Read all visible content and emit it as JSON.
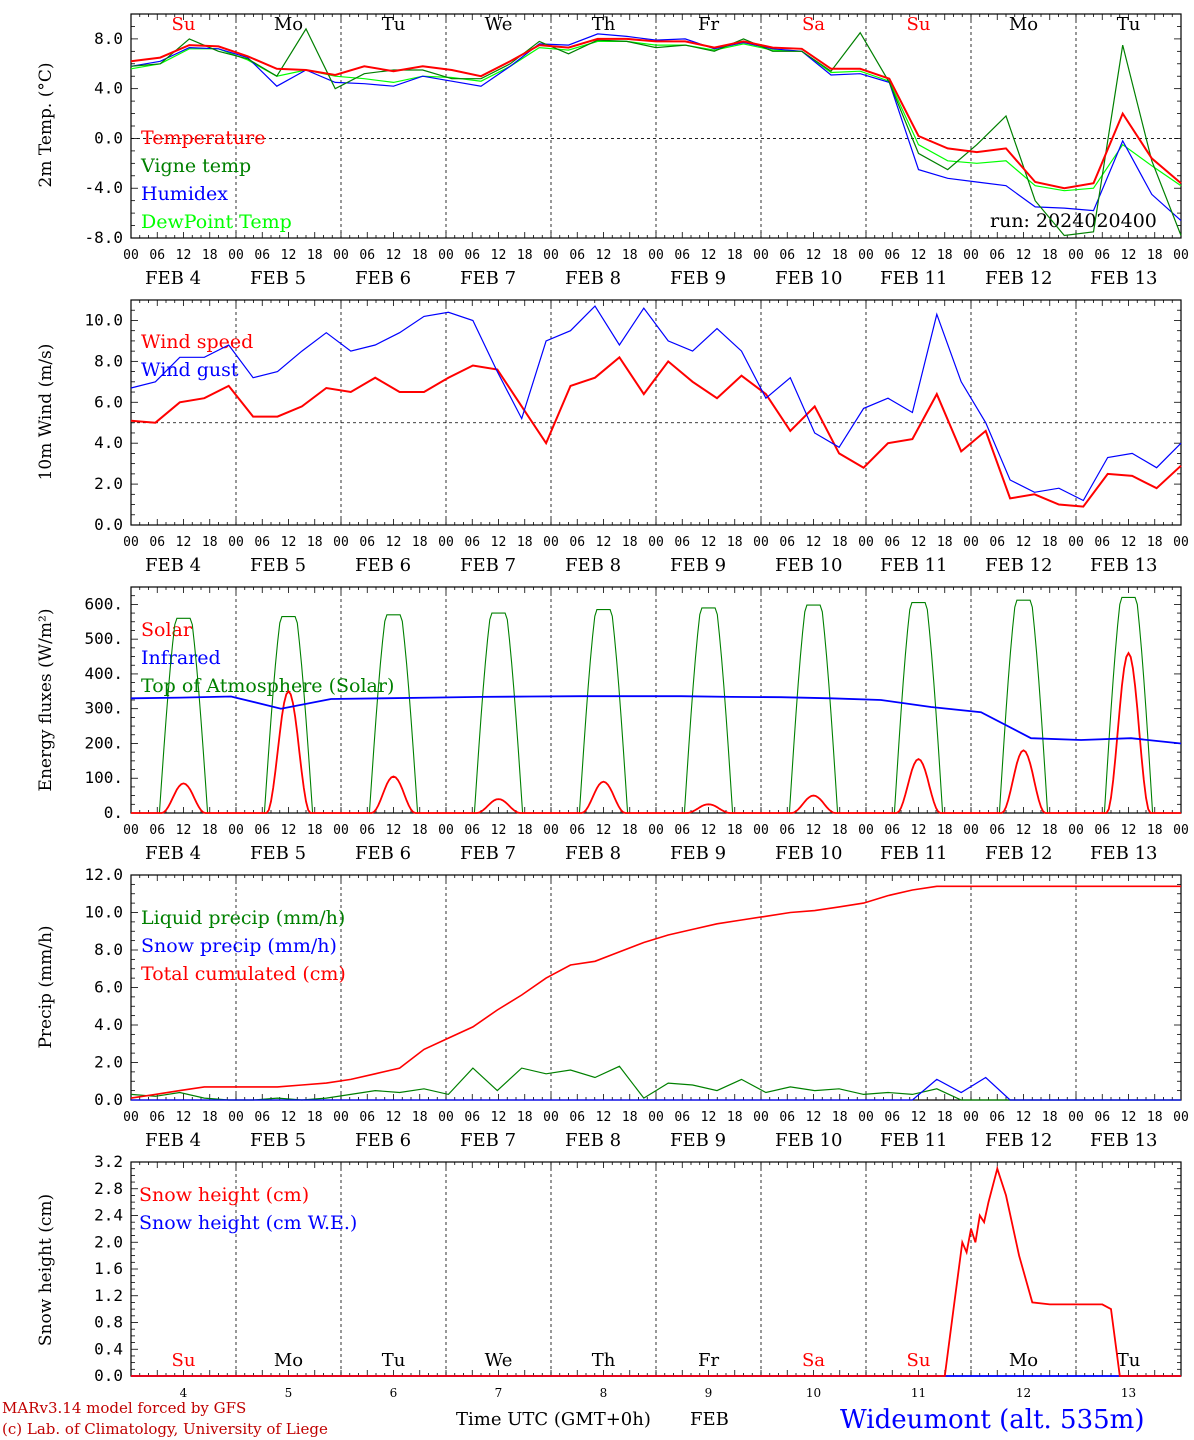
{
  "run_label": "run: 2024020400",
  "footer": {
    "model": "MARv3.14 model forced by GFS",
    "copyright": "(c) Lab. of Climatology, University of Liege",
    "xlabel": "Time UTC (GMT+0h)",
    "month": "FEB",
    "station": "Wideumont (alt. 535m)"
  },
  "day_names": [
    "Su",
    "Mo",
    "Tu",
    "We",
    "Th",
    "Fr",
    "Sa",
    "Su",
    "Mo",
    "Tu"
  ],
  "weekend_color": "#ff0000",
  "date_labels": [
    "FEB  4",
    "FEB  5",
    "FEB  6",
    "FEB  7",
    "FEB  8",
    "FEB  9",
    "FEB 10",
    "FEB 11",
    "FEB 12",
    "FEB 13"
  ],
  "day_numbers": [
    "4",
    "5",
    "6",
    "7",
    "8",
    "9",
    "10",
    "11",
    "12",
    "13"
  ],
  "hour_ticks": [
    "00",
    "06",
    "12",
    "18"
  ],
  "final_tick": "00",
  "chart_data": [
    {
      "type": "line",
      "ylabel": "2m Temp. (°C)",
      "ylim": [
        -8,
        10
      ],
      "yticks": [
        "-8.0",
        "-4.0",
        "0.0",
        "4.0",
        "8.0"
      ],
      "ytick_values": [
        -8,
        -4,
        0,
        4,
        8
      ],
      "ref_line": 0,
      "x_hours": [
        0,
        6,
        12,
        18,
        24,
        30,
        36,
        42,
        48,
        54,
        60,
        66,
        72,
        78,
        84,
        90,
        96,
        102,
        108,
        114,
        120,
        126,
        132,
        138,
        144,
        150,
        156,
        162,
        168,
        174,
        180,
        186,
        192,
        198,
        204,
        210,
        216,
        222,
        228,
        234,
        240
      ],
      "series": [
        {
          "name": "Temperature",
          "color": "#ff0000",
          "values": [
            6.2,
            6.5,
            7.5,
            7.4,
            6.6,
            5.6,
            5.5,
            5.1,
            5.8,
            5.4,
            5.8,
            5.5,
            5.0,
            6.2,
            7.5,
            7.3,
            8.0,
            8.0,
            7.8,
            7.8,
            7.3,
            7.8,
            7.3,
            7.2,
            5.6,
            5.6,
            4.8,
            0.2,
            -0.8,
            -1.1,
            -0.8,
            -3.5,
            -4.0,
            -3.6,
            2.0,
            -1.6,
            -3.6
          ]
        },
        {
          "name": "Vigne temp",
          "color": "#008000",
          "values": [
            5.8,
            6.0,
            8.0,
            7.0,
            6.4,
            5.0,
            8.8,
            4.0,
            5.2,
            5.5,
            5.5,
            4.8,
            4.8,
            6.0,
            7.8,
            6.8,
            7.9,
            7.8,
            7.3,
            7.5,
            7.0,
            8.0,
            7.0,
            7.0,
            5.4,
            8.5,
            4.5,
            -1.2,
            -2.5,
            -0.5,
            1.8,
            -5.0,
            -7.8,
            -7.5,
            7.5,
            -1.8,
            -7.8
          ]
        },
        {
          "name": "Humidex",
          "color": "#0000ff",
          "values": [
            5.8,
            6.2,
            7.3,
            7.2,
            6.5,
            4.2,
            5.5,
            4.5,
            4.4,
            4.2,
            5.0,
            4.6,
            4.2,
            5.8,
            7.6,
            7.5,
            8.4,
            8.2,
            7.9,
            8.0,
            7.2,
            7.7,
            7.2,
            7.0,
            5.1,
            5.2,
            4.5,
            -2.5,
            -3.2,
            -3.5,
            -3.8,
            -5.5,
            -5.6,
            -5.8,
            -0.2,
            -4.5,
            -6.6
          ]
        },
        {
          "name": "DewPoint Temp",
          "color": "#00ff00",
          "values": [
            5.6,
            6.0,
            7.2,
            7.2,
            6.3,
            5.0,
            5.5,
            5.0,
            4.8,
            4.5,
            5.0,
            4.9,
            4.6,
            5.8,
            7.3,
            7.1,
            7.8,
            7.8,
            7.5,
            7.5,
            7.1,
            7.6,
            7.1,
            7.0,
            5.3,
            5.4,
            4.6,
            -0.5,
            -1.8,
            -2.0,
            -1.8,
            -3.8,
            -4.2,
            -4.0,
            -0.5,
            -2.2,
            -3.8
          ]
        }
      ]
    },
    {
      "type": "line",
      "ylabel": "10m Wind (m/s)",
      "ylim": [
        0,
        11
      ],
      "yticks": [
        "0.0",
        "2.0",
        "4.0",
        "6.0",
        "8.0",
        "10.0"
      ],
      "ytick_values": [
        0,
        2,
        4,
        6,
        8,
        10
      ],
      "ref_line": 5,
      "series": [
        {
          "name": "Wind speed",
          "color": "#ff0000",
          "values": [
            5.1,
            5.0,
            6.0,
            6.2,
            6.8,
            5.3,
            5.3,
            5.8,
            6.7,
            6.5,
            7.2,
            6.5,
            6.5,
            7.2,
            7.8,
            7.6,
            5.8,
            4.0,
            6.8,
            7.2,
            8.2,
            6.4,
            8.0,
            7.0,
            6.2,
            7.3,
            6.4,
            4.6,
            5.8,
            3.5,
            2.8,
            4.0,
            4.2,
            6.4,
            3.6,
            4.6,
            1.3,
            1.5,
            1.0,
            0.9,
            2.5,
            2.4,
            1.8,
            2.9
          ]
        },
        {
          "name": "Wind gust",
          "color": "#0000ff",
          "values": [
            6.7,
            7.0,
            8.2,
            8.2,
            8.8,
            7.2,
            7.5,
            8.5,
            9.4,
            8.5,
            8.8,
            9.4,
            10.2,
            10.4,
            10.0,
            7.5,
            5.2,
            9.0,
            9.5,
            10.7,
            8.8,
            10.6,
            9.0,
            8.5,
            9.6,
            8.5,
            6.2,
            7.2,
            4.5,
            3.8,
            5.7,
            6.2,
            5.5,
            10.3,
            7.0,
            5.0,
            2.2,
            1.6,
            1.8,
            1.2,
            3.3,
            3.5,
            2.8,
            4.0
          ]
        }
      ]
    },
    {
      "type": "line",
      "ylabel": "Energy fluxes (W/m²)",
      "ylim": [
        0,
        650
      ],
      "yticks": [
        "0.",
        "100.",
        "200.",
        "300.",
        "400.",
        "500.",
        "600."
      ],
      "ytick_values": [
        0,
        100,
        200,
        300,
        400,
        500,
        600
      ],
      "solar_peaks": [
        85,
        350,
        105,
        40,
        90,
        25,
        50,
        155,
        180,
        460
      ],
      "toa_peaks": [
        560,
        565,
        570,
        575,
        585,
        590,
        598,
        605,
        612,
        620
      ],
      "infrared": [
        330,
        332,
        335,
        300,
        328,
        330,
        332,
        334,
        335,
        336,
        336,
        336,
        334,
        333,
        330,
        325,
        305,
        290,
        215,
        210,
        215,
        200
      ],
      "series": [
        {
          "name": "Solar",
          "color": "#ff0000"
        },
        {
          "name": "Infrared",
          "color": "#0000ff"
        },
        {
          "name": "Top of Atmosphere (Solar)",
          "color": "#008000"
        }
      ]
    },
    {
      "type": "line",
      "ylabel": "Precip (mm/h)",
      "ylim": [
        0,
        12
      ],
      "yticks": [
        "0.0",
        "2.0",
        "4.0",
        "6.0",
        "8.0",
        "10.0",
        "12.0"
      ],
      "ytick_values": [
        0,
        2,
        4,
        6,
        8,
        10,
        12
      ],
      "series": [
        {
          "name": "Liquid precip (mm/h)",
          "color": "#008000",
          "values": [
            0.3,
            0.2,
            0.4,
            0.1,
            0.0,
            0.0,
            0.1,
            0.0,
            0.1,
            0.3,
            0.5,
            0.4,
            0.6,
            0.3,
            1.7,
            0.5,
            1.7,
            1.4,
            1.6,
            1.2,
            1.8,
            0.1,
            0.9,
            0.8,
            0.5,
            1.1,
            0.4,
            0.7,
            0.5,
            0.6,
            0.3,
            0.4,
            0.3,
            0.6,
            0.0,
            0.0,
            0.0,
            0.0,
            0.0,
            0.0,
            0.0,
            0.0,
            0.0,
            0.0
          ]
        },
        {
          "name": "Snow precip (mm/h)",
          "color": "#0000ff",
          "values": [
            0,
            0,
            0,
            0,
            0,
            0,
            0,
            0,
            0,
            0,
            0,
            0,
            0,
            0,
            0,
            0,
            0,
            0,
            0,
            0,
            0,
            0,
            0,
            0,
            0,
            0,
            0,
            0,
            0,
            0,
            0,
            0,
            0,
            1.1,
            0.4,
            1.2,
            0,
            0,
            0,
            0,
            0,
            0,
            0,
            0
          ]
        },
        {
          "name": "Total cumulated (cm)",
          "color": "#ff0000",
          "values": [
            0.1,
            0.3,
            0.5,
            0.7,
            0.7,
            0.7,
            0.7,
            0.8,
            0.9,
            1.1,
            1.4,
            1.7,
            2.7,
            3.3,
            3.9,
            4.8,
            5.6,
            6.5,
            7.2,
            7.4,
            7.9,
            8.4,
            8.8,
            9.1,
            9.4,
            9.6,
            9.8,
            10.0,
            10.1,
            10.3,
            10.5,
            10.9,
            11.2,
            11.4,
            11.4,
            11.4,
            11.4,
            11.4,
            11.4,
            11.4,
            11.4,
            11.4,
            11.4,
            11.4
          ]
        }
      ]
    },
    {
      "type": "line",
      "ylabel": "Snow height (cm)",
      "ylim": [
        0,
        3.2
      ],
      "yticks": [
        "0.0",
        "0.4",
        "0.8",
        "1.2",
        "1.6",
        "2.0",
        "2.4",
        "2.8",
        "3.2"
      ],
      "ytick_values": [
        0,
        0.4,
        0.8,
        1.2,
        1.6,
        2.0,
        2.4,
        2.8,
        3.2
      ],
      "series": [
        {
          "name": "Snow height (cm)",
          "color": "#ff0000",
          "points": [
            [
              0,
              0
            ],
            [
              186,
              0
            ],
            [
              188,
              1.0
            ],
            [
              190,
              2.0
            ],
            [
              191,
              1.85
            ],
            [
              192,
              2.2
            ],
            [
              193,
              2.0
            ],
            [
              194,
              2.4
            ],
            [
              195,
              2.3
            ],
            [
              196,
              2.6
            ],
            [
              198,
              3.1
            ],
            [
              200,
              2.7
            ],
            [
              203,
              1.8
            ],
            [
              206,
              1.1
            ],
            [
              210,
              1.07
            ],
            [
              222,
              1.07
            ],
            [
              224,
              1.0
            ],
            [
              226,
              0
            ],
            [
              240,
              0
            ]
          ]
        },
        {
          "name": "Snow height (cm W.E.)",
          "color": "#0000ff",
          "points": [
            [
              0,
              0
            ],
            [
              240,
              0
            ]
          ]
        }
      ]
    }
  ]
}
